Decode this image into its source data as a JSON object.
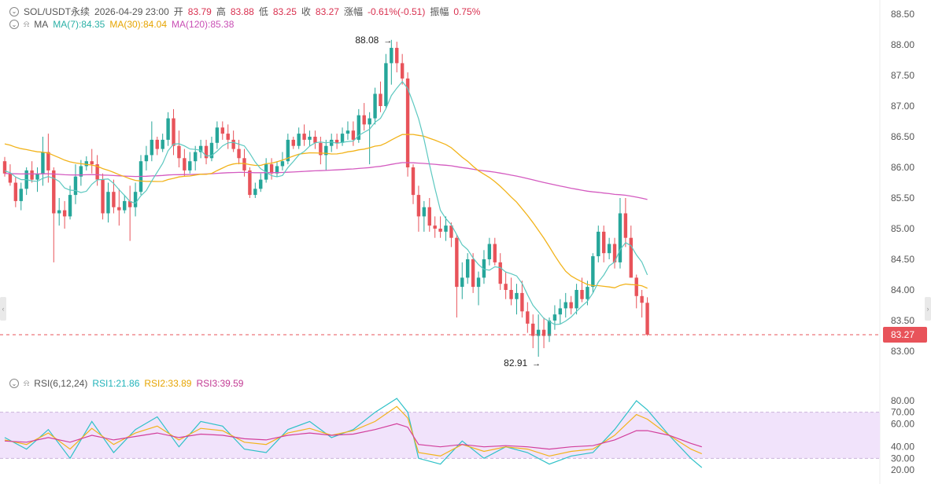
{
  "header": {
    "symbol": "SOL/USDT永续",
    "datetime": "2026-04-29 23:00",
    "open_label": "开",
    "open": "83.79",
    "high_label": "高",
    "high": "83.88",
    "low_label": "低",
    "low": "83.25",
    "close_label": "收",
    "close": "83.27",
    "change_label": "涨幅",
    "change": "-0.61%(-0.51)",
    "amplitude_label": "振幅",
    "amplitude": "0.75%"
  },
  "ma_legend": {
    "label": "MA",
    "ma7": "MA(7):84.35",
    "ma30": "MA(30):84.04",
    "ma120": "MA(120):85.38"
  },
  "rsi_legend": {
    "label": "RSI(6,12,24)",
    "rsi1": "RSI1:21.86",
    "rsi2": "RSI2:33.89",
    "rsi3": "RSI3:39.59"
  },
  "colors": {
    "up": "#26a69a",
    "down": "#e8535a",
    "ma7": "#5cc8c0",
    "ma30": "#f2b31a",
    "ma120": "#d45bc0",
    "rsi1": "#2fc1c8",
    "rsi2": "#f2b31a",
    "rsi3": "#d23f9c",
    "rsi_band": "#f1e3fb"
  },
  "chart_data": [
    {
      "type": "candlestick",
      "y_ticks": [
        "88.50",
        "88.00",
        "87.50",
        "87.00",
        "86.50",
        "86.00",
        "85.50",
        "85.00",
        "84.50",
        "84.00",
        "83.50",
        "83.00"
      ],
      "ylim": [
        82.85,
        88.55
      ],
      "last_price": "83.27",
      "high_marker": "88.08",
      "low_marker": "82.91",
      "ohlc": [
        [
          86.1,
          86.17,
          85.85,
          85.9
        ],
        [
          85.9,
          86.05,
          85.7,
          85.75
        ],
        [
          85.75,
          85.85,
          85.35,
          85.45
        ],
        [
          85.45,
          85.75,
          85.3,
          85.65
        ],
        [
          85.65,
          86.0,
          85.55,
          85.95
        ],
        [
          85.95,
          86.1,
          85.75,
          85.8
        ],
        [
          85.8,
          86.0,
          85.6,
          85.9
        ],
        [
          85.9,
          86.5,
          85.7,
          86.25
        ],
        [
          86.25,
          86.55,
          85.75,
          85.95
        ],
        [
          85.95,
          86.0,
          84.45,
          85.25
        ],
        [
          85.25,
          85.5,
          85.05,
          85.3
        ],
        [
          85.3,
          85.45,
          85.0,
          85.2
        ],
        [
          85.2,
          85.7,
          85.15,
          85.55
        ],
        [
          85.55,
          86.05,
          85.4,
          85.85
        ],
        [
          85.85,
          86.12,
          85.7,
          86.02
        ],
        [
          86.02,
          86.18,
          85.95,
          86.1
        ],
        [
          86.1,
          86.3,
          85.9,
          86.05
        ],
        [
          86.05,
          86.2,
          85.7,
          85.8
        ],
        [
          85.8,
          85.9,
          85.15,
          85.25
        ],
        [
          85.25,
          85.75,
          85.1,
          85.6
        ],
        [
          85.6,
          85.8,
          85.25,
          85.35
        ],
        [
          85.35,
          85.65,
          85.05,
          85.3
        ],
        [
          85.3,
          85.55,
          85.25,
          85.45
        ],
        [
          85.45,
          85.7,
          84.8,
          85.35
        ],
        [
          85.35,
          85.75,
          85.2,
          85.6
        ],
        [
          85.6,
          86.2,
          85.55,
          86.1
        ],
        [
          86.1,
          86.35,
          85.95,
          86.2
        ],
        [
          86.2,
          86.75,
          86.1,
          86.45
        ],
        [
          86.45,
          86.5,
          86.2,
          86.3
        ],
        [
          86.3,
          86.55,
          86.25,
          86.45
        ],
        [
          86.45,
          86.9,
          86.35,
          86.8
        ],
        [
          86.8,
          86.95,
          86.2,
          86.35
        ],
        [
          86.35,
          86.6,
          86.0,
          86.15
        ],
        [
          86.15,
          86.3,
          85.85,
          85.95
        ],
        [
          85.95,
          86.25,
          85.9,
          86.1
        ],
        [
          86.1,
          86.35,
          85.95,
          86.25
        ],
        [
          86.25,
          86.45,
          86.15,
          86.35
        ],
        [
          86.35,
          86.45,
          86.05,
          86.15
        ],
        [
          86.15,
          86.5,
          86.1,
          86.4
        ],
        [
          86.4,
          86.75,
          86.3,
          86.65
        ],
        [
          86.65,
          86.75,
          86.45,
          86.55
        ],
        [
          86.55,
          86.7,
          86.3,
          86.45
        ],
        [
          86.45,
          86.6,
          86.25,
          86.3
        ],
        [
          86.3,
          86.45,
          86.05,
          86.15
        ],
        [
          86.15,
          86.3,
          85.85,
          85.95
        ],
        [
          85.95,
          86.0,
          85.5,
          85.55
        ],
        [
          85.55,
          85.75,
          85.5,
          85.65
        ],
        [
          85.65,
          85.9,
          85.6,
          85.8
        ],
        [
          85.8,
          86.15,
          85.75,
          86.05
        ],
        [
          86.05,
          86.15,
          85.8,
          85.9
        ],
        [
          85.9,
          86.1,
          85.85,
          86.02
        ],
        [
          86.02,
          86.25,
          85.95,
          86.1
        ],
        [
          86.1,
          86.55,
          86.05,
          86.45
        ],
        [
          86.45,
          86.5,
          86.3,
          86.35
        ],
        [
          86.35,
          86.65,
          86.3,
          86.55
        ],
        [
          86.55,
          86.7,
          86.35,
          86.45
        ],
        [
          86.45,
          86.6,
          86.35,
          86.5
        ],
        [
          86.5,
          86.6,
          86.3,
          86.4
        ],
        [
          86.4,
          86.5,
          86.05,
          86.2
        ],
        [
          86.2,
          86.45,
          85.95,
          86.35
        ],
        [
          86.35,
          86.55,
          86.25,
          86.45
        ],
        [
          86.45,
          86.55,
          86.3,
          86.4
        ],
        [
          86.4,
          86.65,
          86.35,
          86.55
        ],
        [
          86.55,
          86.75,
          86.45,
          86.6
        ],
        [
          86.6,
          86.75,
          86.35,
          86.45
        ],
        [
          86.45,
          86.95,
          86.4,
          86.85
        ],
        [
          86.85,
          87.05,
          86.6,
          86.7
        ],
        [
          86.7,
          86.9,
          86.05,
          86.8
        ],
        [
          86.8,
          87.3,
          86.7,
          87.2
        ],
        [
          87.2,
          87.4,
          86.9,
          87.0
        ],
        [
          87.0,
          87.85,
          86.95,
          87.7
        ],
        [
          87.7,
          88.08,
          87.35,
          87.95
        ],
        [
          87.95,
          88.05,
          87.55,
          87.7
        ],
        [
          87.7,
          87.85,
          87.35,
          87.45
        ],
        [
          87.45,
          87.55,
          85.85,
          86.0
        ],
        [
          86.0,
          86.05,
          85.4,
          85.55
        ],
        [
          85.55,
          85.7,
          84.95,
          85.2
        ],
        [
          85.2,
          85.45,
          84.95,
          85.35
        ],
        [
          85.35,
          85.5,
          84.95,
          85.05
        ],
        [
          85.05,
          85.2,
          84.85,
          85.0
        ],
        [
          85.0,
          85.2,
          84.85,
          84.95
        ],
        [
          84.95,
          85.2,
          84.8,
          85.05
        ],
        [
          85.05,
          85.1,
          84.7,
          84.85
        ],
        [
          84.85,
          84.9,
          83.55,
          84.05
        ],
        [
          84.05,
          84.45,
          83.85,
          84.2
        ],
        [
          84.2,
          84.6,
          84.1,
          84.5
        ],
        [
          84.5,
          84.6,
          83.95,
          84.05
        ],
        [
          84.05,
          84.3,
          83.75,
          84.2
        ],
        [
          84.2,
          84.65,
          84.1,
          84.5
        ],
        [
          84.5,
          84.85,
          84.4,
          84.75
        ],
        [
          84.75,
          84.85,
          84.4,
          84.45
        ],
        [
          84.45,
          84.6,
          84.0,
          84.1
        ],
        [
          84.1,
          84.3,
          83.85,
          84.0
        ],
        [
          84.0,
          84.2,
          83.75,
          83.85
        ],
        [
          83.85,
          84.1,
          83.6,
          83.95
        ],
        [
          83.95,
          84.15,
          83.55,
          83.65
        ],
        [
          83.65,
          83.8,
          83.3,
          83.45
        ],
        [
          83.45,
          83.6,
          83.05,
          83.25
        ],
        [
          83.25,
          83.6,
          82.91,
          83.35
        ],
        [
          83.35,
          83.55,
          83.05,
          83.25
        ],
        [
          83.25,
          83.55,
          83.15,
          83.5
        ],
        [
          83.5,
          83.75,
          83.35,
          83.6
        ],
        [
          83.6,
          83.85,
          83.45,
          83.7
        ],
        [
          83.7,
          83.95,
          83.55,
          83.8
        ],
        [
          83.8,
          83.9,
          83.6,
          83.7
        ],
        [
          83.7,
          84.1,
          83.6,
          84.0
        ],
        [
          84.0,
          84.2,
          83.8,
          83.85
        ],
        [
          83.85,
          84.15,
          83.75,
          84.05
        ],
        [
          84.05,
          84.6,
          83.95,
          84.55
        ],
        [
          84.55,
          85.05,
          84.45,
          84.95
        ],
        [
          84.95,
          85.05,
          84.45,
          84.6
        ],
        [
          84.6,
          84.85,
          84.5,
          84.75
        ],
        [
          84.75,
          84.85,
          84.35,
          84.45
        ],
        [
          84.45,
          85.5,
          84.35,
          85.25
        ],
        [
          85.25,
          85.5,
          84.7,
          84.85
        ],
        [
          84.85,
          85.05,
          84.2,
          84.2
        ],
        [
          84.2,
          84.25,
          83.7,
          83.9
        ],
        [
          83.9,
          84.0,
          83.55,
          83.79
        ],
        [
          83.79,
          83.88,
          83.25,
          83.27
        ]
      ]
    },
    {
      "type": "line",
      "title": "RSI(6,12,24)",
      "y_ticks": [
        "80.00",
        "70.00",
        "60.00",
        "40.00",
        "30.00",
        "20.00"
      ],
      "ylim": [
        18,
        85
      ],
      "band": [
        30,
        70
      ],
      "x": [
        0,
        4,
        8,
        12,
        16,
        20,
        24,
        28,
        32,
        36,
        40,
        44,
        48,
        52,
        56,
        60,
        64,
        68,
        72,
        74,
        76,
        80,
        84,
        88,
        92,
        96,
        100,
        104,
        108,
        112,
        116,
        118,
        122,
        126,
        128
      ],
      "series": [
        {
          "name": "RSI1",
          "values": [
            48,
            38,
            55,
            30,
            62,
            35,
            55,
            66,
            40,
            62,
            58,
            38,
            35,
            55,
            62,
            48,
            55,
            70,
            82,
            70,
            30,
            25,
            45,
            30,
            40,
            35,
            25,
            32,
            35,
            55,
            80,
            72,
            50,
            30,
            22
          ]
        },
        {
          "name": "RSI2",
          "values": [
            46,
            42,
            52,
            38,
            56,
            42,
            52,
            58,
            46,
            56,
            54,
            44,
            42,
            52,
            56,
            50,
            54,
            62,
            75,
            65,
            35,
            32,
            42,
            36,
            40,
            38,
            32,
            36,
            38,
            50,
            68,
            64,
            50,
            38,
            34
          ]
        },
        {
          "name": "RSI3",
          "values": [
            45,
            44,
            48,
            44,
            50,
            46,
            49,
            52,
            48,
            51,
            50,
            47,
            46,
            50,
            52,
            50,
            51,
            55,
            60,
            57,
            42,
            40,
            42,
            40,
            41,
            40,
            38,
            40,
            41,
            46,
            54,
            54,
            50,
            43,
            40
          ]
        }
      ]
    }
  ]
}
